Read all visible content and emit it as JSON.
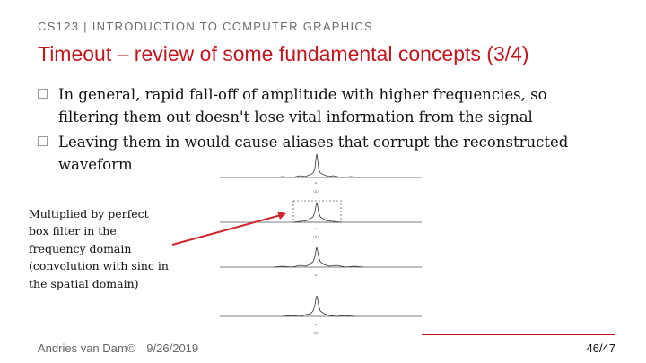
{
  "header": {
    "course": "CS123 | INTRODUCTION TO COMPUTER GRAPHICS",
    "title": "Timeout – review of some fundamental concepts (3/4)"
  },
  "bullets": [
    {
      "text": "In general, rapid fall-off of amplitude with higher frequencies, so filtering them out doesn't lose vital information from  the signal"
    },
    {
      "text": "Leaving them in would cause aliases that corrupt the reconstructed waveform"
    }
  ],
  "caption": "Multiplied by perfect box filter in the frequency domain (convolution with sinc in the spatial domain)",
  "figure": {
    "panel_labels": [
      "(a)",
      "(b)",
      "(c)"
    ]
  },
  "footer": {
    "author": "Andries van Dam©",
    "date": "9/26/2019",
    "page": "46/47"
  },
  "colors": {
    "title": "#c0171f",
    "arrow": "#d0262d",
    "rule": "#c0171f"
  }
}
